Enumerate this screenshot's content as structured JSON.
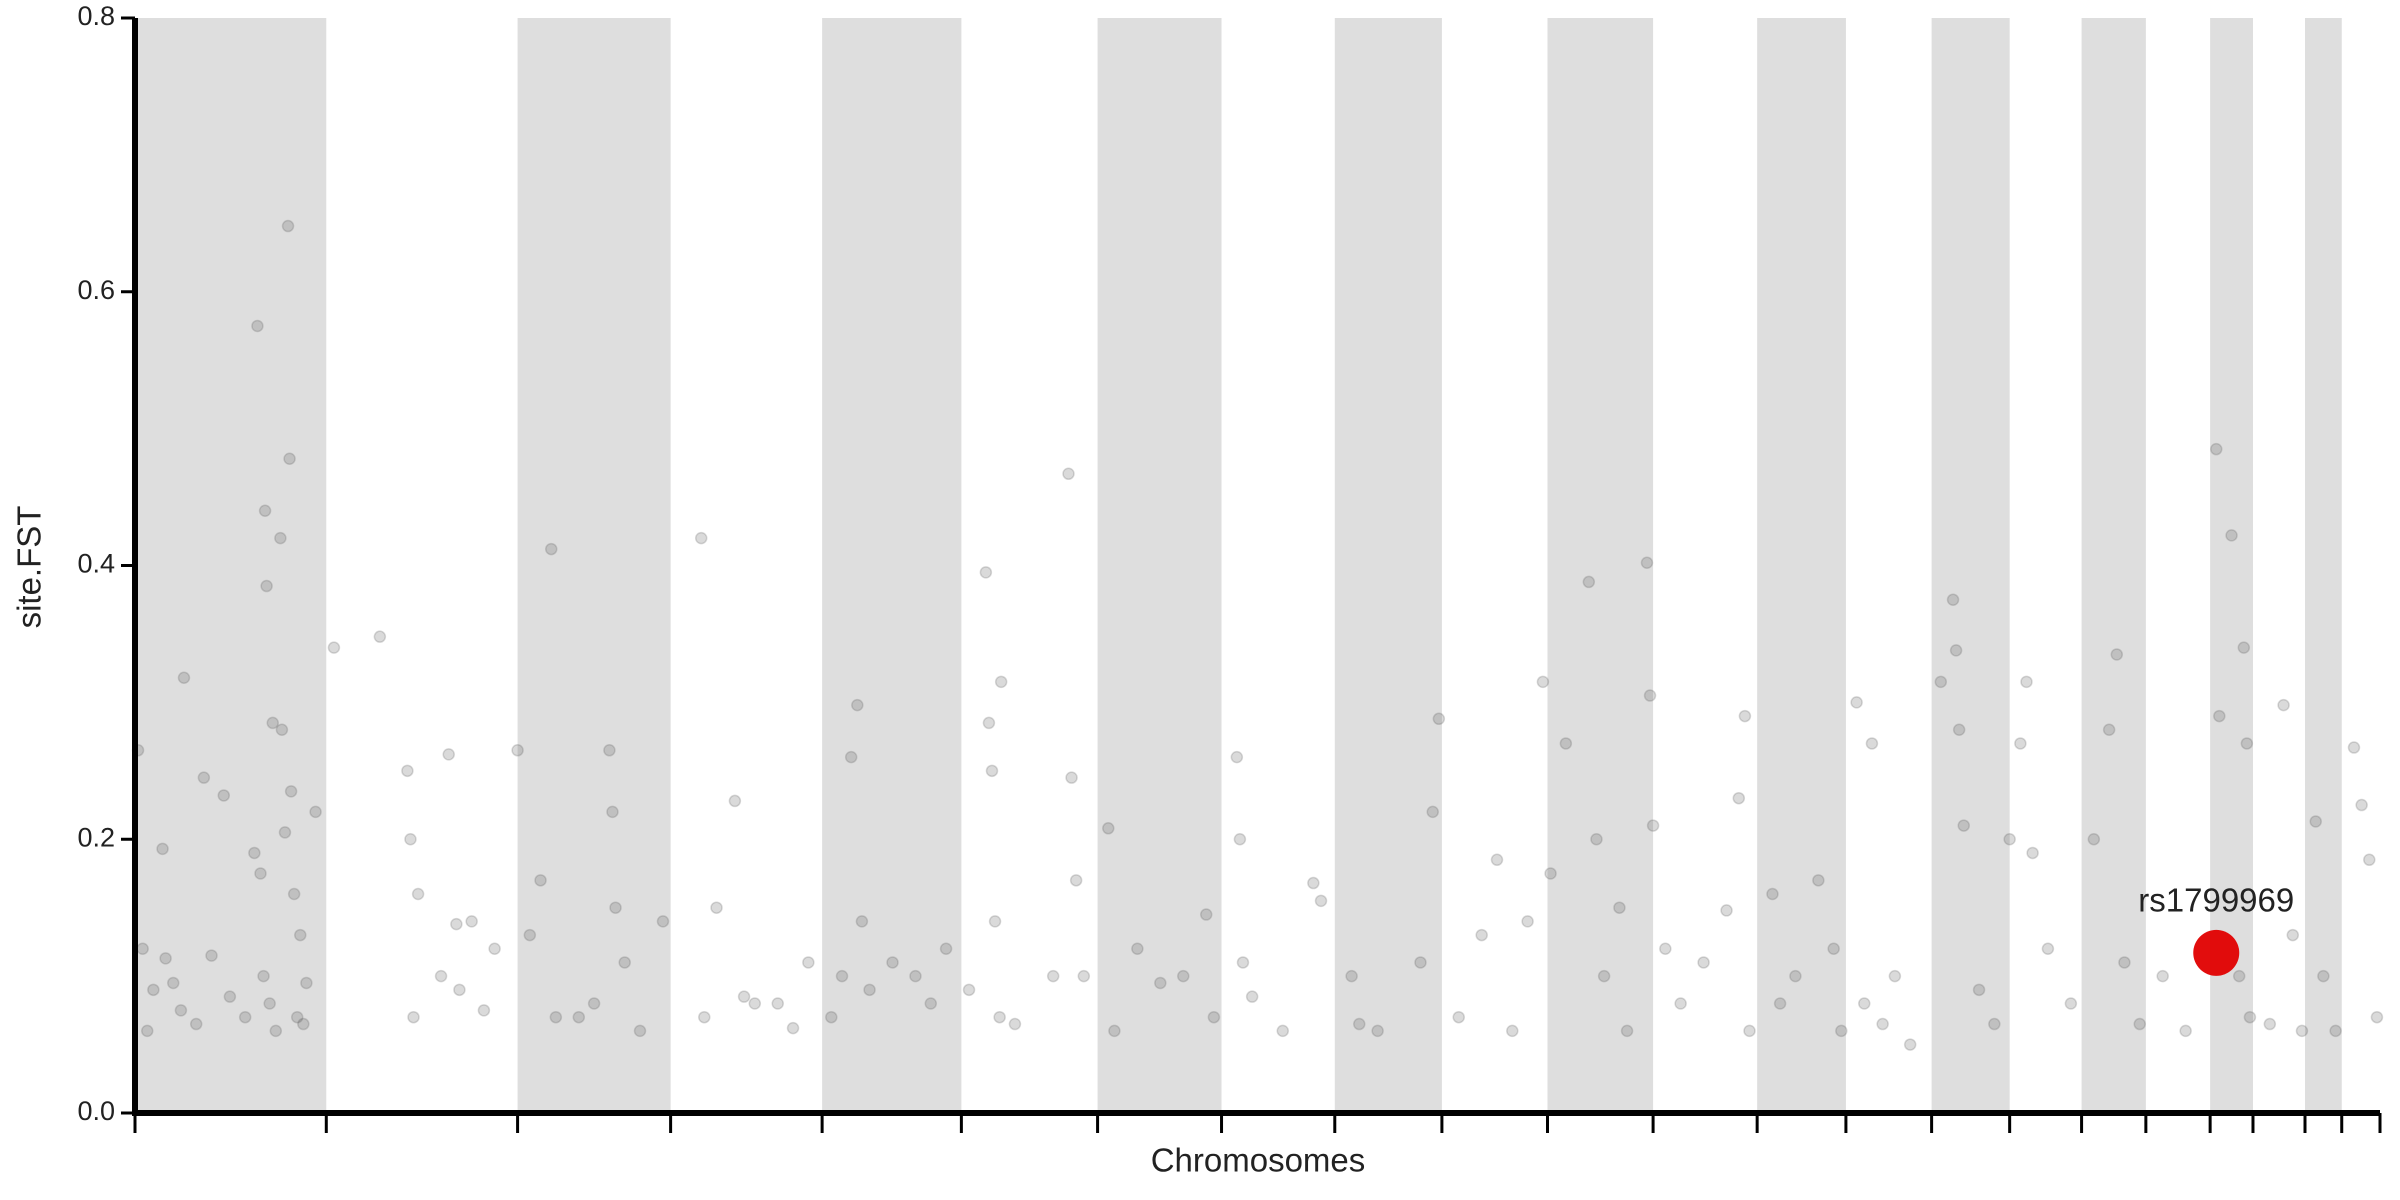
{
  "chart_data": {
    "type": "scatter",
    "xlabel": "Chromosomes",
    "ylabel": "site.FST",
    "xlim": [
      0,
      1467
    ],
    "xticks": [
      0,
      125,
      250,
      350,
      449,
      540,
      629,
      710,
      784,
      854,
      923,
      992,
      1060,
      1118,
      1174,
      1225,
      1272,
      1314,
      1356,
      1384,
      1418,
      1442,
      1467
    ],
    "ylim": [
      0,
      0.8
    ],
    "yticks": [
      {
        "value": 0,
        "label": "0.0"
      },
      0.2,
      0.4,
      0.6,
      0.8
    ],
    "shading": "alternate",
    "shade_color": "#dedede",
    "points": {
      "color": "#555555",
      "opacity": 0.22,
      "x": [
        2,
        5,
        8,
        12,
        18,
        20,
        25,
        30,
        32,
        40,
        45,
        50,
        58,
        62,
        72,
        78,
        80,
        82,
        84,
        85,
        86,
        88,
        90,
        92,
        95,
        96,
        98,
        100,
        101,
        102,
        104,
        106,
        108,
        112,
        118,
        110,
        130,
        160,
        178,
        180,
        182,
        185,
        200,
        205,
        210,
        212,
        220,
        228,
        235,
        250,
        258,
        265,
        272,
        275,
        290,
        300,
        310,
        312,
        314,
        320,
        330,
        345,
        370,
        372,
        380,
        392,
        398,
        405,
        420,
        430,
        440,
        455,
        462,
        468,
        472,
        475,
        480,
        495,
        510,
        520,
        530,
        545,
        556,
        558,
        560,
        562,
        565,
        566,
        575,
        600,
        610,
        612,
        615,
        620,
        636,
        640,
        655,
        670,
        685,
        700,
        705,
        720,
        722,
        724,
        730,
        750,
        770,
        775,
        795,
        800,
        812,
        840,
        848,
        852,
        865,
        880,
        890,
        900,
        910,
        920,
        925,
        935,
        950,
        955,
        960,
        970,
        975,
        988,
        990,
        992,
        1000,
        1010,
        1025,
        1040,
        1048,
        1052,
        1055,
        1070,
        1075,
        1085,
        1100,
        1110,
        1115,
        1125,
        1130,
        1135,
        1142,
        1150,
        1160,
        1180,
        1188,
        1190,
        1192,
        1195,
        1205,
        1215,
        1225,
        1232,
        1236,
        1240,
        1250,
        1265,
        1280,
        1290,
        1295,
        1300,
        1310,
        1325,
        1340,
        1360,
        1362,
        1370,
        1378,
        1380,
        1382,
        1375,
        1395,
        1404,
        1410,
        1416,
        1425,
        1430,
        1438,
        1450,
        1455,
        1460,
        1465
      ],
      "values": [
        0.265,
        0.12,
        0.06,
        0.09,
        0.193,
        0.113,
        0.095,
        0.075,
        0.318,
        0.065,
        0.245,
        0.115,
        0.232,
        0.085,
        0.07,
        0.19,
        0.575,
        0.175,
        0.1,
        0.44,
        0.385,
        0.08,
        0.285,
        0.06,
        0.42,
        0.28,
        0.205,
        0.648,
        0.478,
        0.235,
        0.16,
        0.07,
        0.13,
        0.095,
        0.22,
        0.065,
        0.34,
        0.348,
        0.25,
        0.2,
        0.07,
        0.16,
        0.1,
        0.262,
        0.138,
        0.09,
        0.14,
        0.075,
        0.12,
        0.265,
        0.13,
        0.17,
        0.412,
        0.07,
        0.07,
        0.08,
        0.265,
        0.22,
        0.15,
        0.11,
        0.06,
        0.14,
        0.42,
        0.07,
        0.15,
        0.228,
        0.085,
        0.08,
        0.08,
        0.062,
        0.11,
        0.07,
        0.1,
        0.26,
        0.298,
        0.14,
        0.09,
        0.11,
        0.1,
        0.08,
        0.12,
        0.09,
        0.395,
        0.285,
        0.25,
        0.14,
        0.07,
        0.315,
        0.065,
        0.1,
        0.467,
        0.245,
        0.17,
        0.1,
        0.208,
        0.06,
        0.12,
        0.095,
        0.1,
        0.145,
        0.07,
        0.26,
        0.2,
        0.11,
        0.085,
        0.06,
        0.168,
        0.155,
        0.1,
        0.065,
        0.06,
        0.11,
        0.22,
        0.288,
        0.07,
        0.13,
        0.185,
        0.06,
        0.14,
        0.315,
        0.175,
        0.27,
        0.388,
        0.2,
        0.1,
        0.15,
        0.06,
        0.402,
        0.305,
        0.21,
        0.12,
        0.08,
        0.11,
        0.148,
        0.23,
        0.29,
        0.06,
        0.16,
        0.08,
        0.1,
        0.17,
        0.12,
        0.06,
        0.3,
        0.08,
        0.27,
        0.065,
        0.1,
        0.05,
        0.315,
        0.375,
        0.338,
        0.28,
        0.21,
        0.09,
        0.065,
        0.2,
        0.27,
        0.315,
        0.19,
        0.12,
        0.08,
        0.2,
        0.28,
        0.335,
        0.11,
        0.065,
        0.1,
        0.06,
        0.485,
        0.29,
        0.422,
        0.34,
        0.27,
        0.07,
        0.1,
        0.065,
        0.298,
        0.13,
        0.06,
        0.213,
        0.1,
        0.06,
        0.267,
        0.225,
        0.185,
        0.07
      ]
    },
    "highlight": {
      "label": "rs1799969",
      "x": 1360,
      "value": 0.117,
      "color": "#e00000"
    }
  }
}
